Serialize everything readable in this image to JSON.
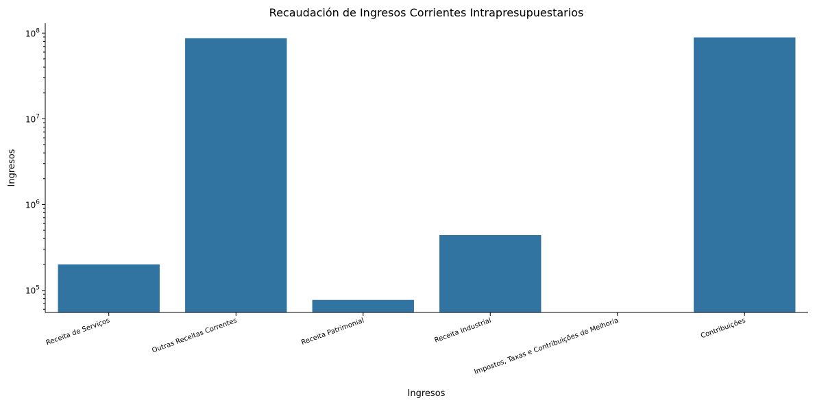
{
  "chart_data": {
    "type": "bar",
    "title": "Recaudación de Ingresos Corrientes Intrapresupuestarios",
    "xlabel": "Ingresos",
    "ylabel": "Ingresos",
    "yscale": "log",
    "ylim": [
      55000,
      130000000
    ],
    "grid": false,
    "bar_color": "#3274a1",
    "categories": [
      "Receita de Serviços",
      "Outras Receitas Correntes",
      "Receita Patrimonial",
      "Receita Industrial",
      "Impostos, Taxas e Contribuições de Melhoria",
      "Contribuições"
    ],
    "values": [
      200000,
      87000000,
      77000,
      440000,
      null,
      89000000
    ],
    "y_ticks": [
      {
        "value": 100000,
        "base": "10",
        "exp": "5"
      },
      {
        "value": 1000000,
        "base": "10",
        "exp": "6"
      },
      {
        "value": 10000000,
        "base": "10",
        "exp": "7"
      },
      {
        "value": 100000000,
        "base": "10",
        "exp": "8"
      }
    ]
  }
}
